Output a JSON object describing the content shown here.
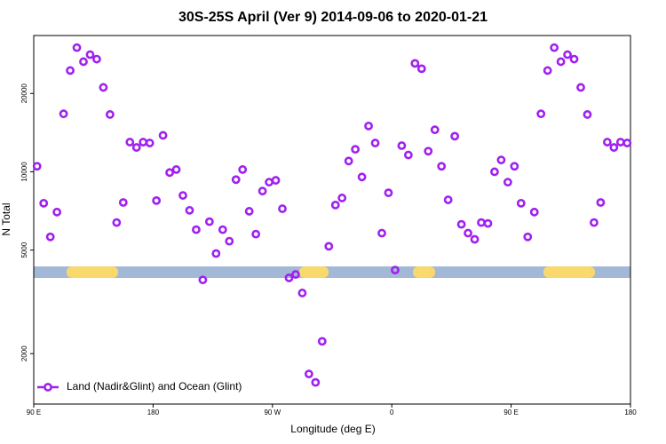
{
  "chart_data": {
    "type": "scatter",
    "title": "30S-25S April (Ver 9)   2014-09-06 to 2020-01-21",
    "x_label": "Longitude (deg E)",
    "y_label": "N Total",
    "log_y": true,
    "legend": "bottom-left",
    "xlim": [
      90,
      540
    ],
    "xticks": [
      {
        "value": 90,
        "label": "90 E"
      },
      180,
      {
        "value": 270,
        "label": "90 W"
      },
      {
        "value": 360,
        "label": "0"
      },
      {
        "value": 450,
        "label": "90 E"
      },
      {
        "value": 540,
        "label": "180"
      }
    ],
    "ylim": [
      1280,
      33400
    ],
    "yticks": [
      2000,
      5000,
      10000,
      20000
    ],
    "x": [
      92.5,
      97.5,
      102.5,
      107.5,
      112.5,
      117.5,
      122.5,
      127.5,
      132.5,
      137.5,
      142.5,
      147.5,
      152.5,
      157.5,
      162.5,
      167.5,
      172.5,
      177.5,
      182.5,
      187.5,
      192.5,
      197.5,
      202.5,
      207.5,
      212.5,
      217.5,
      222.5,
      227.5,
      232.5,
      237.5,
      242.5,
      247.5,
      252.5,
      257.5,
      262.5,
      267.5,
      272.5,
      277.5,
      282.5,
      287.5,
      292.5,
      297.5,
      302.5,
      307.5,
      312.5,
      317.5,
      322.5,
      327.5,
      332.5,
      337.5,
      342.5,
      347.5,
      352.5,
      357.5,
      362.5,
      367.5,
      372.5,
      377.5,
      382.5,
      387.5,
      392.5,
      397.5,
      402.5,
      407.5,
      412.5,
      417.5,
      422.5,
      427.5,
      432.5,
      437.5,
      442.5,
      447.5,
      452.5,
      457.5,
      462.5,
      467.5,
      472.5,
      477.5,
      482.5,
      487.5,
      492.5,
      497.5,
      502.5,
      507.5,
      512.5,
      517.5,
      522.5,
      527.5,
      532.5,
      537.5
    ],
    "series": [
      {
        "name": "Land (Nadir&Glint) and Ocean (Glint)",
        "color": "#a020f0",
        "values": [
          10500,
          7570,
          5620,
          7000,
          16700,
          24500,
          30000,
          26500,
          28200,
          27100,
          21100,
          16600,
          6380,
          7620,
          13000,
          12400,
          13000,
          12900,
          7750,
          13800,
          9930,
          10200,
          8110,
          7110,
          5990,
          3840,
          6430,
          4850,
          5990,
          5410,
          9330,
          10200,
          7050,
          5760,
          8430,
          9120,
          9270,
          7210,
          3910,
          4030,
          3420,
          1670,
          1550,
          2230,
          5170,
          7450,
          7930,
          11000,
          12200,
          9550,
          15000,
          12900,
          5810,
          8300,
          4190,
          12600,
          11600,
          26100,
          24900,
          12000,
          14500,
          10500,
          7800,
          13700,
          6280,
          5810,
          5500,
          6380,
          6330,
          10000,
          11100,
          9120,
          10500,
          7570,
          5620,
          7000,
          16700,
          24500,
          30000,
          26500,
          28200,
          27100,
          21100,
          16600,
          6380,
          7620,
          13000,
          12400,
          13000,
          12900
        ]
      }
    ]
  }
}
